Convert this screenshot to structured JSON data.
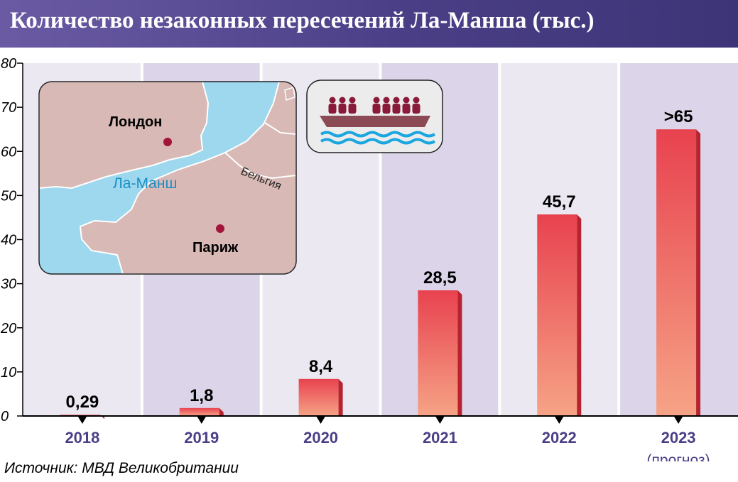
{
  "header": {
    "title": "Количество незаконных пересечений Ла-Манша (тыс.)"
  },
  "source": "Источник: МВД Великобритании",
  "colors": {
    "header_start": "#6a5aa4",
    "header_end": "#3d3478",
    "bar_top": "#e8424f",
    "bar_bottom": "#f6a386",
    "bar_side": "#b8232f",
    "band_light": "#ebe8f2",
    "band_dark": "#dcd5e9",
    "axis_text": "#4a3f86",
    "sea": "#9ed8ee",
    "land": "#d8b9b5",
    "city_dot": "#a3143a",
    "boat_people": "#8a1a3a",
    "boat_hull": "#8c4a55",
    "waves": "#1aa6e0"
  },
  "map": {
    "cities": [
      "Лондон",
      "Париж"
    ],
    "sea_label": "Ла-Манш",
    "country_label": "Бельгия"
  },
  "icons": [
    "boat-with-migrants-icon",
    "channel-map-icon"
  ],
  "chart_data": {
    "type": "bar",
    "categories": [
      "2018",
      "2019",
      "2020",
      "2021",
      "2022",
      "2023"
    ],
    "category_note": {
      "2023": "(прогноз)"
    },
    "values": [
      0.29,
      1.8,
      8.4,
      28.5,
      45.7,
      65
    ],
    "data_labels": [
      "0,29",
      "1,8",
      "8,4",
      "28,5",
      "45,7",
      ">65"
    ],
    "yticks": [
      "0",
      "10",
      "20",
      "30",
      "40",
      "50",
      "60",
      "70",
      "80"
    ],
    "ylim": [
      0,
      80
    ],
    "title": "Количество незаконных пересечений Ла-Манша (тыс.)",
    "xlabel": "",
    "ylabel": "",
    "grid": false,
    "legend": "none"
  }
}
